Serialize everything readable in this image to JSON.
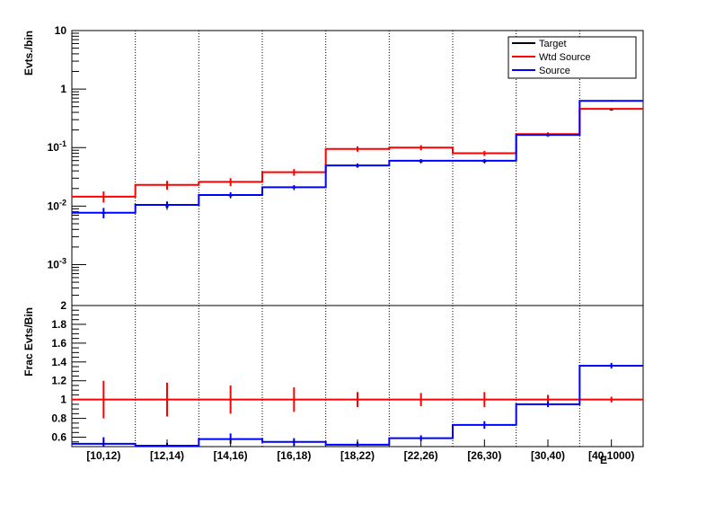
{
  "chart_data": [
    {
      "type": "line",
      "panel": "top",
      "ylabel": "Evts./bin",
      "yscale": "log",
      "ylim": [
        0.0002,
        10
      ],
      "y_ticks": [
        {
          "value": 10,
          "label": "10"
        },
        {
          "value": 1,
          "label": "1"
        },
        {
          "value": 0.1,
          "label": "10^-1"
        },
        {
          "value": 0.01,
          "label": "10^-2"
        },
        {
          "value": 0.001,
          "label": "10^-3"
        }
      ],
      "categories": [
        "[10,12)",
        "[12,14)",
        "[14,16)",
        "[16,18)",
        "[18,22)",
        "[22,26)",
        "[26,30)",
        "[30,40)",
        "[40,1000)"
      ],
      "legend_position": "top-right",
      "series": [
        {
          "name": "Target",
          "color": "#000000",
          "style": "markers",
          "values": [
            0.0075,
            0.0098,
            0.015,
            0.0205,
            0.048,
            0.057,
            0.057,
            0.16,
            0.44
          ],
          "err_low": [
            0.0062,
            0.0086,
            0.0135,
            0.0186,
            0.045,
            0.053,
            0.053,
            0.152,
            0.425
          ],
          "err_high": [
            0.009,
            0.0112,
            0.0167,
            0.0225,
            0.0515,
            0.0605,
            0.0605,
            0.168,
            0.455
          ]
        },
        {
          "name": "Wtd Source",
          "color": "#ff0000",
          "style": "step",
          "values": [
            0.0145,
            0.023,
            0.026,
            0.038,
            0.095,
            0.1,
            0.08,
            0.17,
            0.46
          ],
          "err_low": [
            0.0115,
            0.019,
            0.022,
            0.033,
            0.085,
            0.09,
            0.072,
            0.158,
            0.445
          ],
          "err_high": [
            0.0178,
            0.027,
            0.03,
            0.043,
            0.105,
            0.11,
            0.088,
            0.182,
            0.475
          ]
        },
        {
          "name": "Source",
          "color": "#0000ff",
          "style": "step",
          "values": [
            0.0077,
            0.0105,
            0.0155,
            0.021,
            0.0495,
            0.0595,
            0.0595,
            0.165,
            0.63
          ],
          "err_low": [
            0.0062,
            0.0092,
            0.014,
            0.0195,
            0.046,
            0.056,
            0.056,
            0.157,
            0.61
          ],
          "err_high": [
            0.0093,
            0.012,
            0.0172,
            0.0228,
            0.0535,
            0.0635,
            0.0635,
            0.173,
            0.65
          ]
        }
      ]
    },
    {
      "type": "line",
      "panel": "bottom",
      "ylabel": "Frac Evts/Bin",
      "xlabel": "E",
      "ylim": [
        0.5,
        2
      ],
      "y_ticks": [
        {
          "value": 0.6,
          "label": "0.6"
        },
        {
          "value": 0.8,
          "label": "0.8"
        },
        {
          "value": 1.0,
          "label": "1"
        },
        {
          "value": 1.2,
          "label": "1.2"
        },
        {
          "value": 1.4,
          "label": "1.4"
        },
        {
          "value": 1.6,
          "label": "1.6"
        },
        {
          "value": 1.8,
          "label": "1.8"
        },
        {
          "value": 2.0,
          "label": "2"
        }
      ],
      "categories": [
        "[10,12)",
        "[12,14)",
        "[14,16)",
        "[16,18)",
        "[18,22)",
        "[22,26)",
        "[26,30)",
        "[30,40)",
        "[40,1000)"
      ],
      "series": [
        {
          "name": "Wtd Source",
          "color": "#ff0000",
          "style": "step",
          "values": [
            1,
            1,
            1,
            1,
            1,
            1,
            1,
            1,
            1
          ],
          "err_low": [
            0.8,
            0.82,
            0.85,
            0.87,
            0.92,
            0.93,
            0.92,
            0.95,
            0.97
          ],
          "err_high": [
            1.2,
            1.18,
            1.15,
            1.13,
            1.08,
            1.07,
            1.08,
            1.05,
            1.03
          ]
        },
        {
          "name": "Source",
          "color": "#0000ff",
          "style": "step",
          "values": [
            0.53,
            0.51,
            0.58,
            0.55,
            0.52,
            0.59,
            0.73,
            0.95,
            1.36
          ],
          "err_low": [
            0.5,
            0.5,
            0.53,
            0.51,
            0.5,
            0.56,
            0.69,
            0.92,
            1.33
          ],
          "err_high": [
            0.6,
            0.54,
            0.64,
            0.59,
            0.55,
            0.62,
            0.77,
            0.98,
            1.39
          ]
        }
      ]
    }
  ]
}
